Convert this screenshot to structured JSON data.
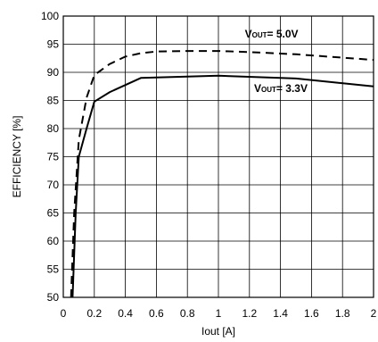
{
  "chart_data": {
    "type": "line",
    "xlabel": "Iout [A]",
    "ylabel": "EFFICIENCY [%]",
    "xlim": [
      0,
      2
    ],
    "ylim": [
      50,
      100
    ],
    "xticks": [
      0,
      0.2,
      0.4,
      0.6,
      0.8,
      1,
      1.2,
      1.4,
      1.6,
      1.8,
      2
    ],
    "xtick_labels": [
      "0",
      "0.2",
      "0.4",
      "0.6",
      "0.8",
      "1",
      "1.2",
      "1.4",
      "1.6",
      "1.8",
      "2"
    ],
    "yticks": [
      50,
      55,
      60,
      65,
      70,
      75,
      80,
      85,
      90,
      95,
      100
    ],
    "ytick_labels": [
      "50",
      "55",
      "60",
      "65",
      "70",
      "75",
      "80",
      "85",
      "90",
      "95",
      "100"
    ],
    "grid": true,
    "series": [
      {
        "style": "dashed",
        "color": "#000000",
        "x": [
          0.05,
          0.07,
          0.1,
          0.15,
          0.2,
          0.3,
          0.4,
          0.5,
          0.6,
          0.8,
          1.0,
          1.2,
          1.5,
          2.0
        ],
        "y": [
          50,
          65,
          78,
          85.5,
          89.5,
          91.5,
          92.8,
          93.4,
          93.7,
          93.8,
          93.8,
          93.6,
          93.2,
          92.2
        ]
      },
      {
        "style": "solid",
        "color": "#000000",
        "x": [
          0.06,
          0.08,
          0.1,
          0.15,
          0.2,
          0.3,
          0.5,
          1.0,
          1.5,
          2.0
        ],
        "y": [
          50,
          65,
          75,
          80,
          84.8,
          86.5,
          89,
          89.4,
          88.9,
          87.5
        ]
      }
    ],
    "annotations": [
      {
        "main": "V",
        "sub": "OUT",
        "rest": "= 5.0V",
        "x": 1.17,
        "y": 96.2
      },
      {
        "main": "V",
        "sub": "OUT",
        "rest": "= 3.3V",
        "x": 1.23,
        "y": 86.5
      }
    ]
  }
}
